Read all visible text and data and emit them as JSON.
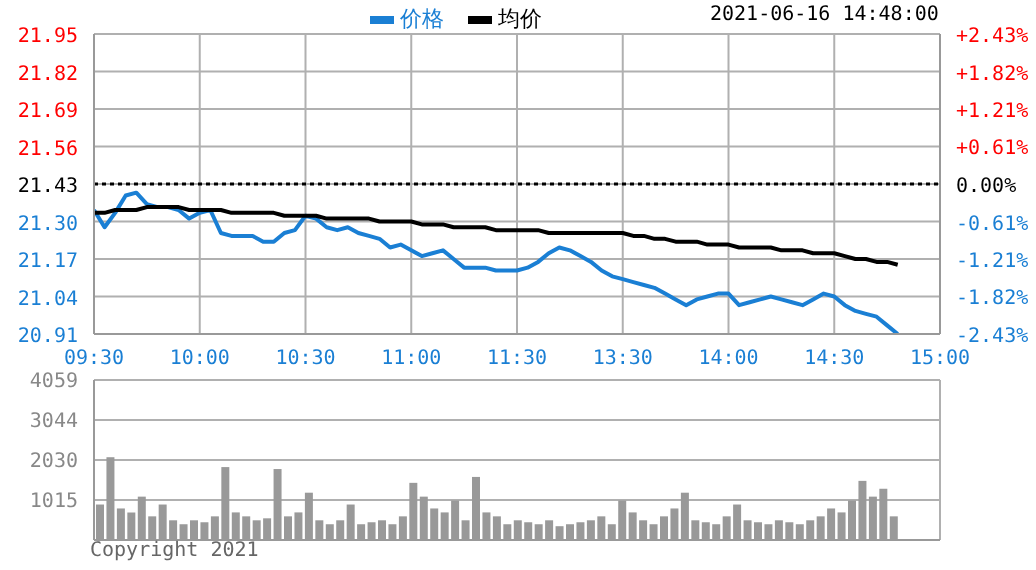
{
  "chart_data": [
    {
      "type": "line",
      "annotations": [
        "2021-06-16 14:48:00"
      ],
      "categories": [
        "09:30",
        null,
        null,
        null,
        null,
        null,
        null,
        null,
        null,
        null,
        "10:00",
        null,
        null,
        null,
        null,
        null,
        null,
        null,
        null,
        null,
        "10:30",
        null,
        null,
        null,
        null,
        null,
        null,
        null,
        null,
        null,
        "11:00",
        null,
        null,
        null,
        null,
        null,
        null,
        null,
        null,
        null,
        "11:30",
        null,
        null,
        null,
        null,
        null,
        null,
        null,
        null,
        null,
        "13:30",
        null,
        null,
        null,
        null,
        null,
        null,
        null,
        null,
        null,
        "14:00",
        null,
        null,
        null,
        null,
        null,
        null,
        null,
        null,
        null,
        "14:30",
        null,
        null,
        null,
        null,
        null,
        null,
        null,
        null,
        null,
        "15:00"
      ],
      "ylim": [
        20.91,
        21.95
      ],
      "yticks": [
        {
          "value": 20.91,
          "label": "20.91"
        },
        {
          "value": 21.04,
          "label": "21.04"
        },
        {
          "value": 21.17,
          "label": "21.17"
        },
        {
          "value": 21.3,
          "label": "21.30"
        },
        {
          "value": 21.43,
          "label": "21.43"
        },
        {
          "value": 21.56,
          "label": "21.56"
        },
        {
          "value": 21.69,
          "label": "21.69"
        },
        {
          "value": 21.82,
          "label": "21.82"
        },
        {
          "value": 21.95,
          "label": "21.95"
        }
      ],
      "y2lim": [
        -2.43,
        2.43
      ],
      "y2ticks": [
        {
          "value": -2.43,
          "label": "-2.43%"
        },
        {
          "value": -1.82,
          "label": "-1.82%"
        },
        {
          "value": -1.21,
          "label": "-1.21%"
        },
        {
          "value": -0.61,
          "label": "-0.61%"
        },
        {
          "value": 0,
          "label": "0.00%"
        },
        {
          "value": 0.61,
          "label": "+0.61%"
        },
        {
          "value": 1.21,
          "label": "+1.21%"
        },
        {
          "value": 1.82,
          "label": "+1.82%"
        },
        {
          "value": 2.43,
          "label": "+2.43%"
        }
      ],
      "grid": true,
      "legend": "top",
      "marker": "none",
      "ref_lines": [
        {
          "axis": "y",
          "value": 21.43,
          "color": "#000000",
          "line_style": "dotted"
        }
      ],
      "series": [
        {
          "name": "价格",
          "color": "#1a7fd4",
          "values": [
            21.34,
            21.28,
            21.33,
            21.39,
            21.4,
            21.36,
            21.35,
            21.35,
            21.34,
            21.31,
            21.33,
            21.34,
            21.26,
            21.25,
            21.25,
            21.25,
            21.23,
            21.23,
            21.26,
            21.27,
            21.32,
            21.31,
            21.28,
            21.27,
            21.28,
            21.26,
            21.25,
            21.24,
            21.21,
            21.22,
            21.2,
            21.18,
            21.19,
            21.2,
            21.17,
            21.14,
            21.14,
            21.14,
            21.13,
            21.13,
            21.13,
            21.14,
            21.16,
            21.19,
            21.21,
            21.2,
            21.18,
            21.16,
            21.13,
            21.11,
            21.1,
            21.09,
            21.08,
            21.07,
            21.05,
            21.03,
            21.01,
            21.03,
            21.04,
            21.05,
            21.05,
            21.01,
            21.02,
            21.03,
            21.04,
            21.03,
            21.02,
            21.01,
            21.03,
            21.05,
            21.04,
            21.01,
            20.99,
            20.98,
            20.97,
            20.94,
            20.91,
            null,
            null,
            null,
            null
          ]
        },
        {
          "name": "均价",
          "color": "#000000",
          "values": [
            21.33,
            21.33,
            21.34,
            21.34,
            21.34,
            21.35,
            21.35,
            21.35,
            21.35,
            21.34,
            21.34,
            21.34,
            21.34,
            21.33,
            21.33,
            21.33,
            21.33,
            21.33,
            21.32,
            21.32,
            21.32,
            21.32,
            21.31,
            21.31,
            21.31,
            21.31,
            21.31,
            21.3,
            21.3,
            21.3,
            21.3,
            21.29,
            21.29,
            21.29,
            21.28,
            21.28,
            21.28,
            21.28,
            21.27,
            21.27,
            21.27,
            21.27,
            21.27,
            21.26,
            21.26,
            21.26,
            21.26,
            21.26,
            21.26,
            21.26,
            21.26,
            21.25,
            21.25,
            21.24,
            21.24,
            21.23,
            21.23,
            21.23,
            21.22,
            21.22,
            21.22,
            21.21,
            21.21,
            21.21,
            21.21,
            21.2,
            21.2,
            21.2,
            21.19,
            21.19,
            21.19,
            21.18,
            21.17,
            21.17,
            21.16,
            21.16,
            21.15,
            null,
            null,
            null,
            null
          ]
        }
      ]
    },
    {
      "type": "bar",
      "annotations": [
        "Copyright 2021"
      ],
      "grid": true,
      "categories": [
        null,
        null,
        null,
        null,
        null,
        null,
        null,
        null,
        null,
        null,
        null,
        null,
        null,
        null,
        null,
        null,
        null,
        null,
        null,
        null,
        null,
        null,
        null,
        null,
        null,
        null,
        null,
        null,
        null,
        null,
        null,
        null,
        null,
        null,
        null,
        null,
        null,
        null,
        null,
        null,
        null,
        null,
        null,
        null,
        null,
        null,
        null,
        null,
        null,
        null,
        null,
        null,
        null,
        null,
        null,
        null,
        null,
        null,
        null,
        null,
        null,
        null,
        null,
        null,
        null,
        null,
        null,
        null,
        null,
        null,
        null,
        null,
        null,
        null,
        null,
        null,
        null,
        null,
        null,
        null,
        null
      ],
      "ylim": [
        0,
        4059
      ],
      "yticks": [
        1015,
        2030,
        3044,
        4059
      ],
      "series": [
        {
          "color": "#999999",
          "values": [
            900,
            2100,
            800,
            700,
            1100,
            600,
            900,
            500,
            400,
            500,
            450,
            600,
            1850,
            700,
            600,
            500,
            550,
            1800,
            600,
            700,
            1200,
            500,
            400,
            500,
            900,
            400,
            450,
            500,
            400,
            600,
            1450,
            1100,
            800,
            700,
            1000,
            500,
            1600,
            700,
            600,
            400,
            500,
            450,
            400,
            500,
            350,
            400,
            450,
            500,
            600,
            400,
            1000,
            700,
            500,
            400,
            600,
            800,
            1200,
            500,
            450,
            400,
            600,
            900,
            500,
            450,
            400,
            500,
            450,
            400,
            500,
            600,
            800,
            700,
            1000,
            1500,
            1100,
            1300,
            600,
            null,
            null,
            null,
            null
          ]
        }
      ]
    }
  ]
}
